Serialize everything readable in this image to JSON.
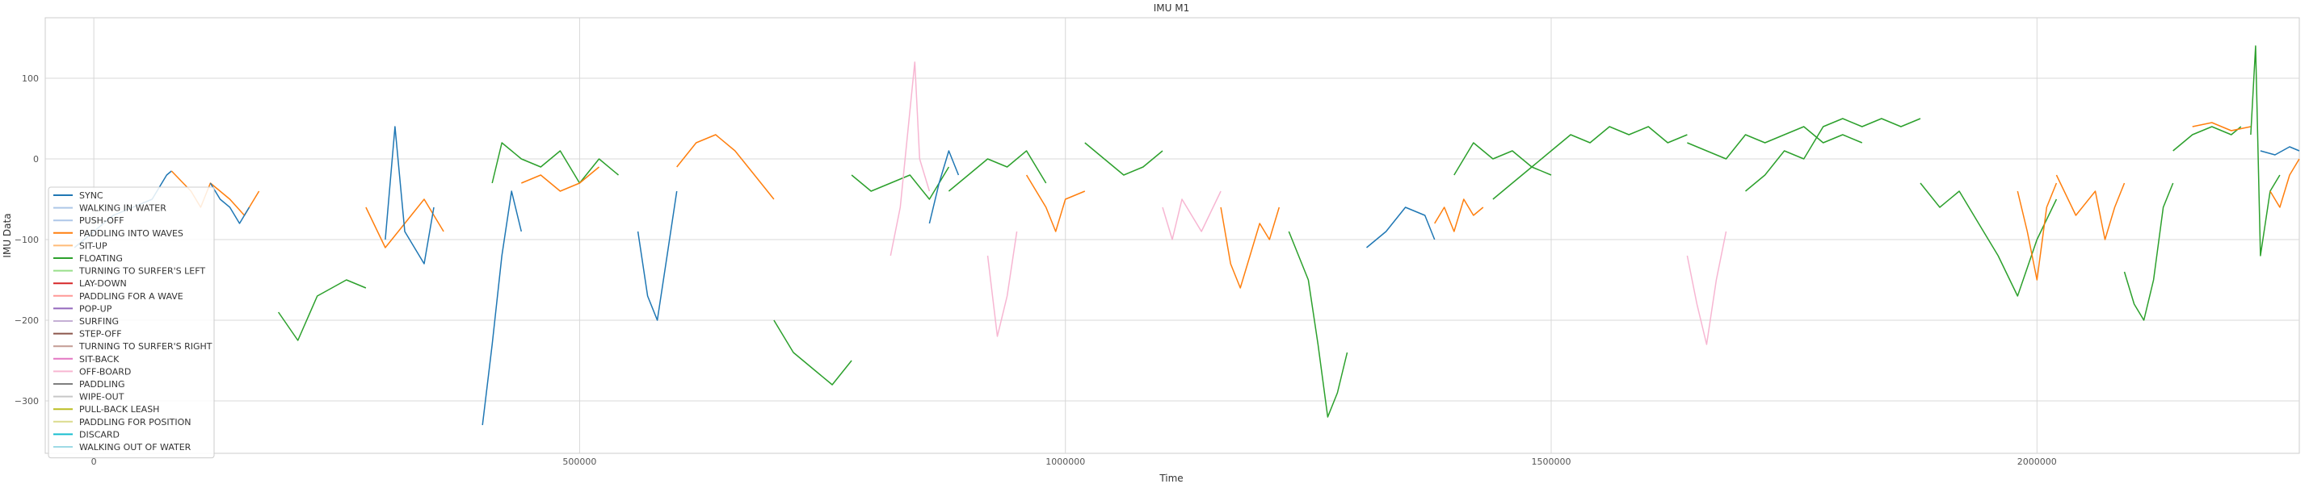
{
  "chart_data": {
    "type": "line",
    "title": "IMU M1",
    "xlabel": "Time",
    "ylabel": "IMU Data",
    "xlim": [
      -50000,
      2270000
    ],
    "ylim": [
      -365,
      175
    ],
    "xticks": [
      0,
      500000,
      1000000,
      1500000,
      2000000
    ],
    "xtick_labels": [
      "0",
      "500000",
      "1000000",
      "1500000",
      "2000000"
    ],
    "yticks": [
      100,
      0,
      -100,
      -200,
      -300
    ],
    "ytick_labels": [
      "100",
      "0",
      "−100",
      "−200",
      "−300"
    ],
    "grid": true,
    "legend_position": "lower-left",
    "legend": [
      {
        "name": "SYNC",
        "color": "#1f77b4"
      },
      {
        "name": "WALKING IN WATER",
        "color": "#aec7e8"
      },
      {
        "name": "PUSH-OFF",
        "color": "#aec7e8"
      },
      {
        "name": "PADDLING INTO WAVES",
        "color": "#ff7f0e"
      },
      {
        "name": "SIT-UP",
        "color": "#ffbb78"
      },
      {
        "name": "FLOATING",
        "color": "#2ca02c"
      },
      {
        "name": "TURNING TO SURFER'S LEFT",
        "color": "#98df8a"
      },
      {
        "name": "LAY-DOWN",
        "color": "#d62728"
      },
      {
        "name": "PADDLING FOR A WAVE",
        "color": "#ff9896"
      },
      {
        "name": "POP-UP",
        "color": "#9467bd"
      },
      {
        "name": "SURFING",
        "color": "#c5b0d5"
      },
      {
        "name": "STEP-OFF",
        "color": "#8c564b"
      },
      {
        "name": "TURNING TO SURFER'S RIGHT",
        "color": "#c49c94"
      },
      {
        "name": "SIT-BACK",
        "color": "#e377c2"
      },
      {
        "name": "OFF-BOARD",
        "color": "#f7b6d2"
      },
      {
        "name": "PADDLING",
        "color": "#7f7f7f"
      },
      {
        "name": "WIPE-OUT",
        "color": "#c7c7c7"
      },
      {
        "name": "PULL-BACK LEASH",
        "color": "#bcbd22"
      },
      {
        "name": "PADDLING FOR POSITION",
        "color": "#dbdb8d"
      },
      {
        "name": "DISCARD",
        "color": "#17becf"
      },
      {
        "name": "WALKING OUT OF WATER",
        "color": "#9edae5"
      }
    ],
    "series": [
      {
        "label": "SYNC",
        "color": "#1f77b4",
        "points": [
          [
            -20000,
            -110
          ],
          [
            0,
            -90
          ],
          [
            20000,
            -70
          ],
          [
            40000,
            -60
          ],
          [
            60000,
            -50
          ],
          [
            75000,
            -20
          ],
          [
            80000,
            -15
          ]
        ]
      },
      {
        "label": "PADDLING INTO WAVES",
        "color": "#ff7f0e",
        "points": [
          [
            80000,
            -15
          ],
          [
            100000,
            -40
          ],
          [
            110000,
            -60
          ],
          [
            120000,
            -30
          ],
          [
            140000,
            -50
          ],
          [
            155000,
            -70
          ],
          [
            170000,
            -40
          ]
        ]
      },
      {
        "label": "SYNC",
        "color": "#1f77b4",
        "points": [
          [
            120000,
            -30
          ],
          [
            130000,
            -50
          ],
          [
            140000,
            -60
          ],
          [
            150000,
            -80
          ],
          [
            160000,
            -60
          ]
        ]
      },
      {
        "label": "FLOATING",
        "color": "#2ca02c",
        "points": [
          [
            190000,
            -190
          ],
          [
            210000,
            -225
          ],
          [
            230000,
            -170
          ],
          [
            260000,
            -150
          ],
          [
            280000,
            -160
          ]
        ]
      },
      {
        "label": "PADDLING INTO WAVES",
        "color": "#ff7f0e",
        "points": [
          [
            280000,
            -60
          ],
          [
            300000,
            -110
          ],
          [
            320000,
            -80
          ],
          [
            340000,
            -50
          ],
          [
            360000,
            -90
          ]
        ]
      },
      {
        "label": "SYNC",
        "color": "#1f77b4",
        "points": [
          [
            300000,
            -100
          ],
          [
            310000,
            40
          ],
          [
            320000,
            -90
          ],
          [
            340000,
            -130
          ],
          [
            350000,
            -60
          ]
        ]
      },
      {
        "label": "FLOATING",
        "color": "#2ca02c",
        "points": [
          [
            410000,
            -30
          ],
          [
            420000,
            20
          ],
          [
            440000,
            0
          ],
          [
            460000,
            -10
          ],
          [
            480000,
            10
          ],
          [
            500000,
            -30
          ],
          [
            520000,
            0
          ],
          [
            540000,
            -20
          ]
        ]
      },
      {
        "label": "SYNC",
        "color": "#1f77b4",
        "points": [
          [
            400000,
            -330
          ],
          [
            410000,
            -230
          ],
          [
            420000,
            -120
          ],
          [
            430000,
            -40
          ],
          [
            440000,
            -90
          ]
        ]
      },
      {
        "label": "PADDLING INTO WAVES",
        "color": "#ff7f0e",
        "points": [
          [
            440000,
            -30
          ],
          [
            460000,
            -20
          ],
          [
            480000,
            -40
          ],
          [
            500000,
            -30
          ],
          [
            520000,
            -10
          ]
        ]
      },
      {
        "label": "SYNC",
        "color": "#1f77b4",
        "points": [
          [
            560000,
            -90
          ],
          [
            570000,
            -170
          ],
          [
            580000,
            -200
          ],
          [
            590000,
            -120
          ],
          [
            600000,
            -40
          ]
        ]
      },
      {
        "label": "PADDLING INTO WAVES",
        "color": "#ff7f0e",
        "points": [
          [
            600000,
            -10
          ],
          [
            620000,
            20
          ],
          [
            640000,
            30
          ],
          [
            660000,
            10
          ],
          [
            680000,
            -20
          ],
          [
            700000,
            -50
          ]
        ]
      },
      {
        "label": "FLOATING",
        "color": "#2ca02c",
        "points": [
          [
            700000,
            -200
          ],
          [
            720000,
            -240
          ],
          [
            740000,
            -260
          ],
          [
            760000,
            -280
          ],
          [
            780000,
            -250
          ]
        ]
      },
      {
        "label": "FLOATING",
        "color": "#2ca02c",
        "points": [
          [
            780000,
            -20
          ],
          [
            800000,
            -40
          ],
          [
            820000,
            -30
          ],
          [
            840000,
            -20
          ],
          [
            860000,
            -50
          ],
          [
            880000,
            -10
          ]
        ]
      },
      {
        "label": "OFF-BOARD",
        "color": "#f7b6d2",
        "points": [
          [
            820000,
            -120
          ],
          [
            830000,
            -60
          ],
          [
            840000,
            60
          ],
          [
            845000,
            120
          ],
          [
            850000,
            0
          ],
          [
            860000,
            -40
          ]
        ]
      },
      {
        "label": "SYNC",
        "color": "#1f77b4",
        "points": [
          [
            860000,
            -80
          ],
          [
            870000,
            -30
          ],
          [
            880000,
            10
          ],
          [
            890000,
            -20
          ]
        ]
      },
      {
        "label": "FLOATING",
        "color": "#2ca02c",
        "points": [
          [
            880000,
            -40
          ],
          [
            900000,
            -20
          ],
          [
            920000,
            0
          ],
          [
            940000,
            -10
          ],
          [
            960000,
            10
          ],
          [
            980000,
            -30
          ]
        ]
      },
      {
        "label": "OFF-BOARD",
        "color": "#f7b6d2",
        "points": [
          [
            920000,
            -120
          ],
          [
            930000,
            -220
          ],
          [
            940000,
            -170
          ],
          [
            950000,
            -90
          ]
        ]
      },
      {
        "label": "PADDLING INTO WAVES",
        "color": "#ff7f0e",
        "points": [
          [
            960000,
            -20
          ],
          [
            980000,
            -60
          ],
          [
            990000,
            -90
          ],
          [
            1000000,
            -50
          ],
          [
            1020000,
            -40
          ]
        ]
      },
      {
        "label": "FLOATING",
        "color": "#2ca02c",
        "points": [
          [
            1020000,
            20
          ],
          [
            1040000,
            0
          ],
          [
            1060000,
            -20
          ],
          [
            1080000,
            -10
          ],
          [
            1100000,
            10
          ]
        ]
      },
      {
        "label": "OFF-BOARD",
        "color": "#f7b6d2",
        "points": [
          [
            1100000,
            -60
          ],
          [
            1110000,
            -100
          ],
          [
            1120000,
            -50
          ],
          [
            1140000,
            -90
          ],
          [
            1160000,
            -40
          ]
        ]
      },
      {
        "label": "PADDLING INTO WAVES",
        "color": "#ff7f0e",
        "points": [
          [
            1160000,
            -60
          ],
          [
            1170000,
            -130
          ],
          [
            1180000,
            -160
          ],
          [
            1190000,
            -120
          ],
          [
            1200000,
            -80
          ],
          [
            1210000,
            -100
          ],
          [
            1220000,
            -60
          ]
        ]
      },
      {
        "label": "FLOATING",
        "color": "#2ca02c",
        "points": [
          [
            1230000,
            -90
          ],
          [
            1250000,
            -150
          ],
          [
            1260000,
            -230
          ],
          [
            1270000,
            -320
          ],
          [
            1280000,
            -290
          ],
          [
            1290000,
            -240
          ]
        ]
      },
      {
        "label": "SYNC",
        "color": "#1f77b4",
        "points": [
          [
            1310000,
            -110
          ],
          [
            1330000,
            -90
          ],
          [
            1350000,
            -60
          ],
          [
            1370000,
            -70
          ],
          [
            1380000,
            -100
          ]
        ]
      },
      {
        "label": "FLOATING",
        "color": "#2ca02c",
        "points": [
          [
            1400000,
            -20
          ],
          [
            1420000,
            20
          ],
          [
            1440000,
            0
          ],
          [
            1460000,
            10
          ],
          [
            1480000,
            -10
          ],
          [
            1500000,
            -20
          ]
        ]
      },
      {
        "label": "PADDLING INTO WAVES",
        "color": "#ff7f0e",
        "points": [
          [
            1380000,
            -80
          ],
          [
            1390000,
            -60
          ],
          [
            1400000,
            -90
          ],
          [
            1410000,
            -50
          ],
          [
            1420000,
            -70
          ],
          [
            1430000,
            -60
          ]
        ]
      },
      {
        "label": "FLOATING",
        "color": "#2ca02c",
        "points": [
          [
            1440000,
            -50
          ],
          [
            1460000,
            -30
          ],
          [
            1480000,
            -10
          ],
          [
            1500000,
            10
          ],
          [
            1520000,
            30
          ],
          [
            1540000,
            20
          ],
          [
            1560000,
            40
          ],
          [
            1580000,
            30
          ],
          [
            1600000,
            40
          ],
          [
            1620000,
            20
          ],
          [
            1640000,
            30
          ]
        ]
      },
      {
        "label": "FLOATING",
        "color": "#2ca02c",
        "points": [
          [
            1640000,
            20
          ],
          [
            1660000,
            10
          ],
          [
            1680000,
            0
          ],
          [
            1700000,
            30
          ],
          [
            1720000,
            20
          ],
          [
            1740000,
            30
          ],
          [
            1760000,
            40
          ],
          [
            1780000,
            20
          ],
          [
            1800000,
            30
          ],
          [
            1820000,
            20
          ]
        ]
      },
      {
        "label": "OFF-BOARD",
        "color": "#f7b6d2",
        "points": [
          [
            1640000,
            -120
          ],
          [
            1650000,
            -180
          ],
          [
            1660000,
            -230
          ],
          [
            1670000,
            -150
          ],
          [
            1680000,
            -90
          ]
        ]
      },
      {
        "label": "FLOATING",
        "color": "#2ca02c",
        "points": [
          [
            1700000,
            -40
          ],
          [
            1720000,
            -20
          ],
          [
            1740000,
            10
          ],
          [
            1760000,
            0
          ],
          [
            1780000,
            40
          ],
          [
            1800000,
            50
          ],
          [
            1820000,
            40
          ],
          [
            1840000,
            50
          ],
          [
            1860000,
            40
          ],
          [
            1880000,
            50
          ]
        ]
      },
      {
        "label": "FLOATING",
        "color": "#2ca02c",
        "points": [
          [
            1880000,
            -30
          ],
          [
            1900000,
            -60
          ],
          [
            1920000,
            -40
          ],
          [
            1940000,
            -80
          ],
          [
            1960000,
            -120
          ],
          [
            1980000,
            -170
          ],
          [
            2000000,
            -100
          ],
          [
            2020000,
            -50
          ]
        ]
      },
      {
        "label": "PADDLING INTO WAVES",
        "color": "#ff7f0e",
        "points": [
          [
            1980000,
            -40
          ],
          [
            1990000,
            -90
          ],
          [
            2000000,
            -150
          ],
          [
            2010000,
            -60
          ],
          [
            2020000,
            -30
          ]
        ]
      },
      {
        "label": "PADDLING INTO WAVES",
        "color": "#ff7f0e",
        "points": [
          [
            2020000,
            -20
          ],
          [
            2040000,
            -70
          ],
          [
            2060000,
            -40
          ],
          [
            2070000,
            -100
          ],
          [
            2080000,
            -60
          ],
          [
            2090000,
            -30
          ]
        ]
      },
      {
        "label": "FLOATING",
        "color": "#2ca02c",
        "points": [
          [
            2090000,
            -140
          ],
          [
            2100000,
            -180
          ],
          [
            2110000,
            -200
          ],
          [
            2120000,
            -150
          ],
          [
            2130000,
            -60
          ],
          [
            2140000,
            -30
          ]
        ]
      },
      {
        "label": "FLOATING",
        "color": "#2ca02c",
        "points": [
          [
            2140000,
            10
          ],
          [
            2160000,
            30
          ],
          [
            2180000,
            40
          ],
          [
            2200000,
            30
          ],
          [
            2210000,
            40
          ]
        ]
      },
      {
        "label": "PADDLING INTO WAVES",
        "color": "#ff7f0e",
        "points": [
          [
            2160000,
            40
          ],
          [
            2180000,
            45
          ],
          [
            2200000,
            35
          ],
          [
            2220000,
            40
          ]
        ]
      },
      {
        "label": "FLOATING",
        "color": "#2ca02c",
        "points": [
          [
            2220000,
            30
          ],
          [
            2225000,
            140
          ],
          [
            2230000,
            -120
          ],
          [
            2240000,
            -40
          ],
          [
            2250000,
            -20
          ]
        ]
      },
      {
        "label": "PADDLING INTO WAVES",
        "color": "#ff7f0e",
        "points": [
          [
            2240000,
            -40
          ],
          [
            2250000,
            -60
          ],
          [
            2260000,
            -20
          ],
          [
            2270000,
            0
          ]
        ]
      },
      {
        "label": "SYNC",
        "color": "#1f77b4",
        "points": [
          [
            2230000,
            10
          ],
          [
            2245000,
            5
          ],
          [
            2260000,
            15
          ],
          [
            2270000,
            10
          ]
        ]
      }
    ]
  }
}
